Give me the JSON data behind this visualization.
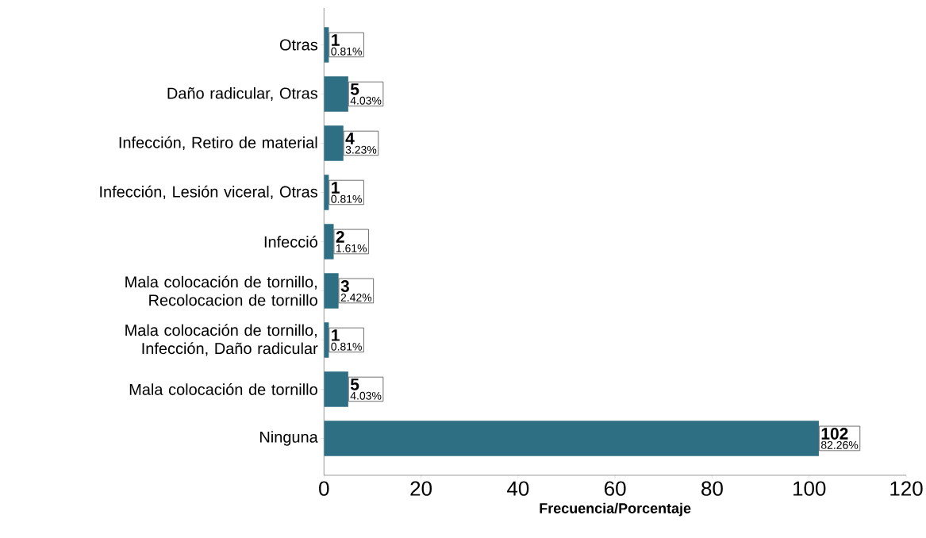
{
  "chart_data": {
    "type": "bar",
    "orientation": "horizontal",
    "xlabel": "Frecuencia/Porcentaje",
    "categories": [
      "Otras",
      "Daño radicular, Otras",
      "Infección, Retiro de material",
      "Infección, Lesión viceral, Otras",
      "Infecció",
      "Mala colocación de tornillo, Recolocacion de tornillo",
      "Mala colocación de tornillo, Infección, Daño radicular",
      "Mala colocación de tornillo",
      "Ninguna"
    ],
    "values": [
      1,
      5,
      4,
      1,
      2,
      3,
      1,
      5,
      102
    ],
    "color": "#2f6f84",
    "value_labels": [
      "1",
      "5",
      "4",
      "1",
      "2",
      "3",
      "1",
      "5",
      "102"
    ],
    "annotations": [
      "0.81%",
      "4.03%",
      "3.23%",
      "0.81%",
      "1.61%",
      "2.42%",
      "0.81%",
      "4.03%",
      "82.26%"
    ],
    "xlim": [
      0,
      120
    ],
    "xticks": [
      0,
      20,
      40,
      60,
      80,
      100,
      120
    ]
  }
}
